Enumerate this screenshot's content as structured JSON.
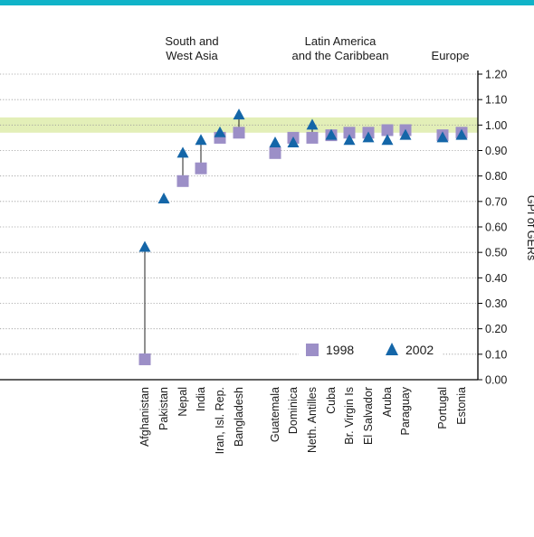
{
  "chart_data": {
    "type": "scatter",
    "categories": [
      "Afghanistan",
      "Pakistan",
      "Nepal",
      "India",
      "Iran, Isl. Rep.",
      "Bangladesh",
      "Guatemala",
      "Dominica",
      "Neth. Antilles",
      "Cuba",
      "Br. Virgin Is",
      "El Salvador",
      "Aruba",
      "Paraguay",
      "Portugal",
      "Estonia"
    ],
    "series": [
      {
        "name": "1998",
        "values": [
          0.08,
          null,
          0.78,
          0.83,
          0.95,
          0.97,
          0.89,
          0.95,
          0.95,
          0.96,
          0.97,
          0.97,
          0.98,
          0.98,
          0.96,
          0.97
        ]
      },
      {
        "name": "2002",
        "values": [
          0.52,
          0.71,
          0.89,
          0.94,
          0.97,
          1.04,
          0.93,
          0.93,
          1.0,
          0.96,
          0.94,
          0.95,
          0.94,
          0.96,
          0.95,
          0.96
        ]
      }
    ],
    "groups": [
      {
        "label_lines": [
          "South and",
          "West Asia"
        ],
        "categories": [
          "Afghanistan",
          "Pakistan",
          "Nepal",
          "India",
          "Iran, Isl. Rep.",
          "Bangladesh"
        ]
      },
      {
        "label_lines": [
          "Latin America",
          "and the Caribbean"
        ],
        "categories": [
          "Guatemala",
          "Dominica",
          "Neth. Antilles",
          "Cuba",
          "Br. Virgin Is",
          "El Salvador",
          "Aruba",
          "Paraguay"
        ]
      },
      {
        "label_lines": [
          "Europe"
        ],
        "categories": [
          "Portugal",
          "Estonia"
        ]
      }
    ],
    "ylabel": "GPI of GERs",
    "ylim": [
      0,
      1.2
    ],
    "yticks": [
      "0.00",
      "0.10",
      "0.20",
      "0.30",
      "0.40",
      "0.50",
      "0.60",
      "0.70",
      "0.80",
      "0.90",
      "1.00",
      "1.10",
      "1.20"
    ],
    "parity_band": [
      0.97,
      1.03
    ],
    "grid": true,
    "legend_position": "bottom-right",
    "colors": {
      "series_1998": "#9c8fc7",
      "series_2002": "#1466a8",
      "top_bar": "#10b3c8",
      "parity_band": "#e3efb8",
      "grid": "#9a9a9a"
    }
  }
}
